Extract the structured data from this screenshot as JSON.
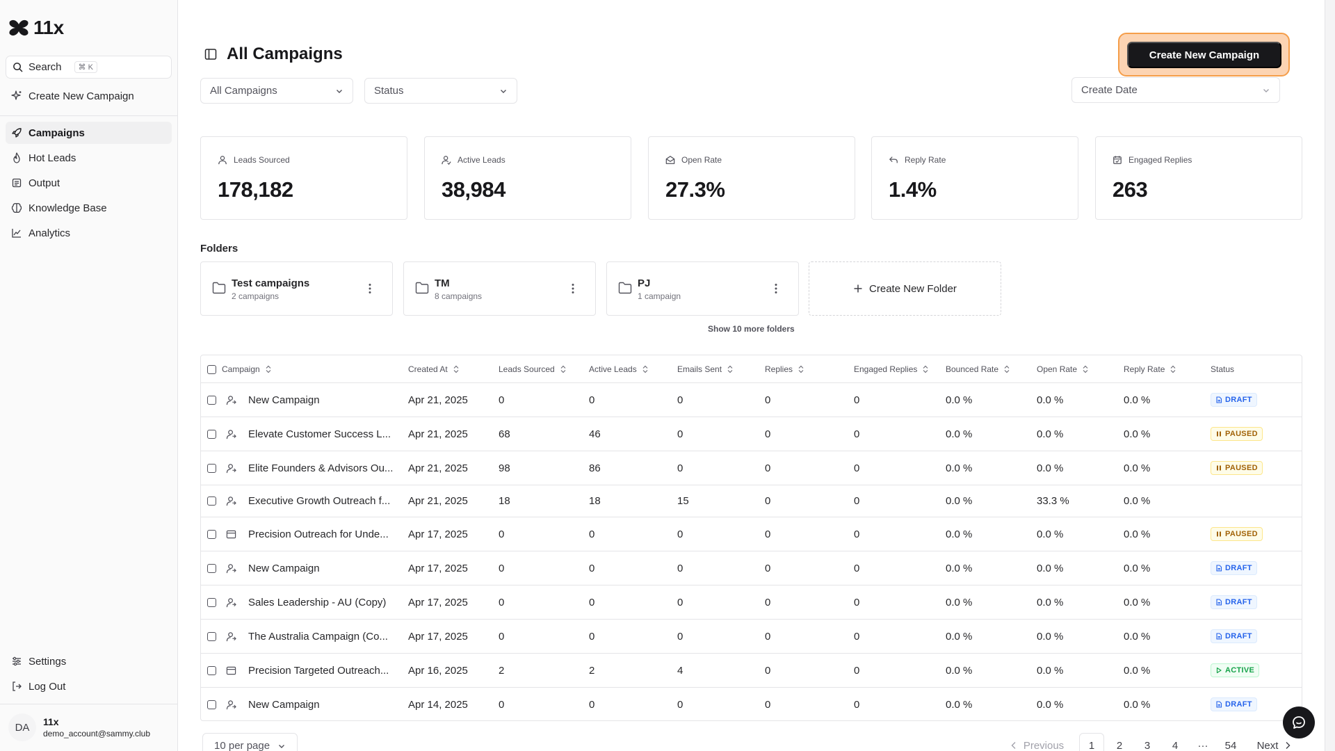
{
  "app": {
    "logo_text": "11x"
  },
  "sidebar": {
    "search_label": "Search",
    "search_shortcut": "⌘ K",
    "create_campaign": "Create New Campaign",
    "nav": [
      "Campaigns",
      "Hot Leads",
      "Output",
      "Knowledge Base",
      "Analytics"
    ],
    "settings": "Settings",
    "logout": "Log Out",
    "user": {
      "initials": "DA",
      "name": "11x",
      "email": "demo_account@sammy.club"
    }
  },
  "header": {
    "title": "All Campaigns",
    "create_button": "Create New Campaign",
    "filter_campaigns": "All Campaigns",
    "filter_status": "Status",
    "filter_date": "Create Date"
  },
  "stats": [
    {
      "label": "Leads Sourced",
      "value": "178,182",
      "icon": "user-icon"
    },
    {
      "label": "Active Leads",
      "value": "38,984",
      "icon": "user-check-icon"
    },
    {
      "label": "Open Rate",
      "value": "27.3%",
      "icon": "mail-open-icon"
    },
    {
      "label": "Reply Rate",
      "value": "1.4%",
      "icon": "reply-icon"
    },
    {
      "label": "Engaged Replies",
      "value": "263",
      "icon": "calendar-check-icon"
    }
  ],
  "folders": {
    "label": "Folders",
    "items": [
      {
        "name": "Test campaigns",
        "count": "2 campaigns"
      },
      {
        "name": "TM",
        "count": "8 campaigns"
      },
      {
        "name": "PJ",
        "count": "1 campaign"
      }
    ],
    "create_label": "Create New Folder",
    "show_more": "Show 10 more folders"
  },
  "table": {
    "columns": [
      "Campaign",
      "Created At",
      "Leads Sourced",
      "Active Leads",
      "Emails Sent",
      "Replies",
      "Engaged Replies",
      "Bounced Rate",
      "Open Rate",
      "Reply Rate",
      "Status"
    ],
    "rows": [
      {
        "icon": "user",
        "campaign": "New Campaign",
        "created": "Apr 21, 2025",
        "leads": "0",
        "active": "0",
        "emails": "0",
        "replies": "0",
        "engaged": "0",
        "bounced": "0.0 %",
        "open": "0.0 %",
        "reply": "0.0 %",
        "status": "DRAFT"
      },
      {
        "icon": "user",
        "campaign": "Elevate Customer Success L...",
        "created": "Apr 21, 2025",
        "leads": "68",
        "active": "46",
        "emails": "0",
        "replies": "0",
        "engaged": "0",
        "bounced": "0.0 %",
        "open": "0.0 %",
        "reply": "0.0 %",
        "status": "PAUSED"
      },
      {
        "icon": "user",
        "campaign": "Elite Founders & Advisors Ou...",
        "created": "Apr 21, 2025",
        "leads": "98",
        "active": "86",
        "emails": "0",
        "replies": "0",
        "engaged": "0",
        "bounced": "0.0 %",
        "open": "0.0 %",
        "reply": "0.0 %",
        "status": "PAUSED"
      },
      {
        "icon": "user",
        "campaign": "Executive Growth Outreach f...",
        "created": "Apr 21, 2025",
        "leads": "18",
        "active": "18",
        "emails": "15",
        "replies": "0",
        "engaged": "0",
        "bounced": "0.0 %",
        "open": "33.3 %",
        "reply": "0.0 %",
        "status": ""
      },
      {
        "icon": "window",
        "campaign": "Precision Outreach for Unde...",
        "created": "Apr 17, 2025",
        "leads": "0",
        "active": "0",
        "emails": "0",
        "replies": "0",
        "engaged": "0",
        "bounced": "0.0 %",
        "open": "0.0 %",
        "reply": "0.0 %",
        "status": "PAUSED"
      },
      {
        "icon": "user",
        "campaign": "New Campaign",
        "created": "Apr 17, 2025",
        "leads": "0",
        "active": "0",
        "emails": "0",
        "replies": "0",
        "engaged": "0",
        "bounced": "0.0 %",
        "open": "0.0 %",
        "reply": "0.0 %",
        "status": "DRAFT"
      },
      {
        "icon": "user",
        "campaign": "Sales Leadership - AU (Copy)",
        "created": "Apr 17, 2025",
        "leads": "0",
        "active": "0",
        "emails": "0",
        "replies": "0",
        "engaged": "0",
        "bounced": "0.0 %",
        "open": "0.0 %",
        "reply": "0.0 %",
        "status": "DRAFT"
      },
      {
        "icon": "user",
        "campaign": "The Australia Campaign (Co...",
        "created": "Apr 17, 2025",
        "leads": "0",
        "active": "0",
        "emails": "0",
        "replies": "0",
        "engaged": "0",
        "bounced": "0.0 %",
        "open": "0.0 %",
        "reply": "0.0 %",
        "status": "DRAFT"
      },
      {
        "icon": "window",
        "campaign": "Precision Targeted Outreach...",
        "created": "Apr 16, 2025",
        "leads": "2",
        "active": "2",
        "emails": "4",
        "replies": "0",
        "engaged": "0",
        "bounced": "0.0 %",
        "open": "0.0 %",
        "reply": "0.0 %",
        "status": "ACTIVE"
      },
      {
        "icon": "user",
        "campaign": "New Campaign",
        "created": "Apr 14, 2025",
        "leads": "0",
        "active": "0",
        "emails": "0",
        "replies": "0",
        "engaged": "0",
        "bounced": "0.0 %",
        "open": "0.0 %",
        "reply": "0.0 %",
        "status": "DRAFT"
      }
    ]
  },
  "pagination": {
    "per_page": "10 per page",
    "previous": "Previous",
    "pages": [
      "1",
      "2",
      "3",
      "4"
    ],
    "ellipsis": "···",
    "last": "54",
    "next": "Next"
  }
}
